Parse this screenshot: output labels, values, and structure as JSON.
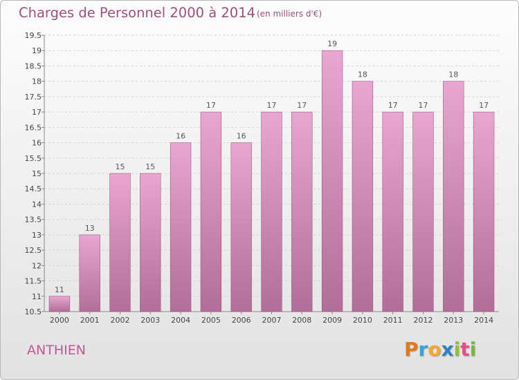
{
  "header": {
    "title": "Charges de Personnel 2000 à 2014",
    "subtitle": "(en milliers d'€)"
  },
  "footer": {
    "town": "ANTHIEN",
    "logo_letters": [
      {
        "char": "P",
        "color": "#e07a1f"
      },
      {
        "char": "r",
        "color": "#3aa0d8"
      },
      {
        "char": "o",
        "color": "#f2a82c"
      },
      {
        "char": "x",
        "color": "#2f7fc9"
      },
      {
        "char": "i",
        "color": "#8dc13c"
      },
      {
        "char": "t",
        "color": "#e94d8a"
      },
      {
        "char": "i",
        "color": "#7ab83a"
      }
    ]
  },
  "chart_data": {
    "type": "bar",
    "categories": [
      "2000",
      "2001",
      "2002",
      "2003",
      "2004",
      "2005",
      "2006",
      "2007",
      "2008",
      "2009",
      "2010",
      "2011",
      "2012",
      "2013",
      "2014"
    ],
    "values": [
      11,
      13,
      15,
      15,
      16,
      17,
      16,
      17,
      17,
      19,
      18,
      17,
      17,
      18,
      17
    ],
    "data_labels": [
      "11",
      "13",
      "15",
      "15",
      "16",
      "17",
      "16",
      "17",
      "17",
      "19",
      "18",
      "17",
      "17",
      "18",
      "17"
    ],
    "title": "Charges de Personnel 2000 à 2014",
    "ylim": [
      10.5,
      19.5
    ],
    "yticks": [
      "10.5",
      "11",
      "11.5",
      "12",
      "12.5",
      "13",
      "13.5",
      "14",
      "14.5",
      "15",
      "15.5",
      "16",
      "16.5",
      "17",
      "17.5",
      "18",
      "18.5",
      "19",
      "19.5"
    ],
    "grid": true,
    "legend": "none",
    "colors": {
      "bar_top": "#e8a6d0",
      "bar_bottom": "#b06e98",
      "bar_edge": "#9a5c85",
      "title": "#9a4f7f",
      "town": "#c3559a"
    }
  }
}
